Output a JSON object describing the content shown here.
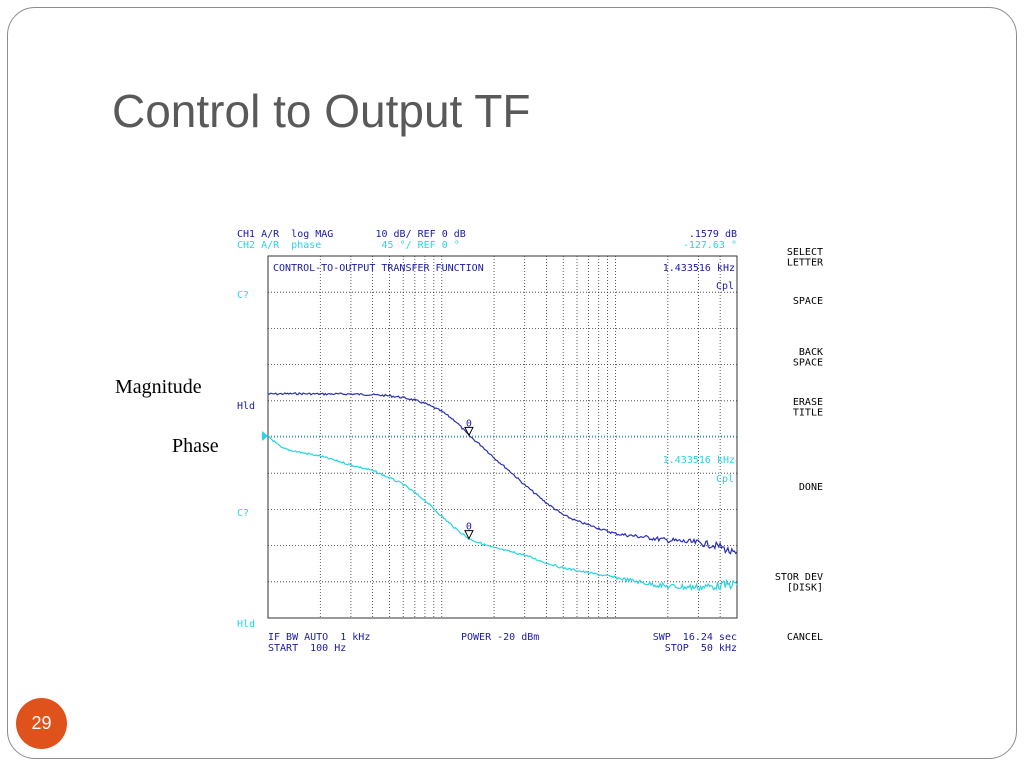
{
  "slide": {
    "title": "Control to Output TF",
    "magnitude_label": "Magnitude",
    "phase_label": "Phase",
    "page_number": "29"
  },
  "colors": {
    "ch1": "#2a2fb4",
    "ch2": "#29d4e0",
    "header_text": "#1a1aa8",
    "grid": "#333333",
    "badge": "#e0521c",
    "title": "#595959"
  },
  "analyzer": {
    "header": {
      "ch1_line": "CH1 A/R  log MAG       10 dB/ REF 0 dB",
      "ch2_line": "CH2 A/R  phase          45 °/ REF 0 °",
      "ch1_value": ".1579 dB",
      "ch2_value": "-127.63 °"
    },
    "plot_title": "CONTROL-TO-OUTPUT TRANSFER FUNCTION",
    "marker_freq_top": "1.433516 kHz",
    "marker_freq_bottom": "1.433516 kHz",
    "cpl_top": "Cpl",
    "cpl_bottom": "Cpl",
    "left_labels": [
      "C?",
      "Hld",
      "C?",
      "Hld"
    ],
    "marker_id": "0",
    "footer": {
      "left_line1": "IF BW AUTO  1 kHz",
      "left_line2": "START  100 Hz",
      "center": "POWER -20 dBm",
      "right_line1": "SWP  16.24 sec",
      "right_line2": "STOP  50 kHz"
    },
    "softkeys": [
      [
        "SELECT",
        "LETTER"
      ],
      [
        "SPACE"
      ],
      [
        "BACK",
        "SPACE"
      ],
      [
        "ERASE",
        "TITLE"
      ],
      [
        "DONE"
      ],
      [
        "STOR DEV",
        "[DISK]"
      ],
      [
        "CANCEL"
      ]
    ]
  },
  "chart_data": {
    "type": "line",
    "title": "CONTROL-TO-OUTPUT TRANSFER FUNCTION",
    "x_scale": "log",
    "xlim": [
      100,
      50000
    ],
    "grid": true,
    "marker_x": 1433.516,
    "series": [
      {
        "name": "CH1 A/R log MAG",
        "units": "dB",
        "scale_per_div": 10,
        "reference": 0,
        "x": [
          100,
          150,
          200,
          300,
          400,
          500,
          600,
          700,
          800,
          1000,
          1200,
          1433.516,
          1700,
          2000,
          2500,
          3000,
          4000,
          5000,
          6000,
          8000,
          10000,
          15000,
          20000,
          30000,
          40000,
          50000
        ],
        "y": [
          11.6,
          11.7,
          11.6,
          11.6,
          11.4,
          11.1,
          10.6,
          9.9,
          9.0,
          6.8,
          4.1,
          0.16,
          -2.8,
          -6.0,
          -10.0,
          -13.5,
          -18.5,
          -21.8,
          -23.5,
          -25.5,
          -27.0,
          -28.0,
          -28.8,
          -29.5,
          -30.5,
          -33.0
        ]
      },
      {
        "name": "CH2 A/R phase",
        "units": "deg",
        "scale_per_div": 45,
        "reference": 0,
        "x": [
          100,
          120,
          150,
          200,
          300,
          400,
          500,
          600,
          800,
          1000,
          1200,
          1433.516,
          1700,
          2000,
          3000,
          4000,
          5000,
          7000,
          10000,
          15000,
          20000,
          30000,
          40000,
          50000
        ],
        "y": [
          0,
          -15,
          -20,
          -25,
          -36,
          -43,
          -52,
          -60,
          -80,
          -100,
          -115,
          -127.63,
          -134,
          -139,
          -148,
          -158,
          -164,
          -170,
          -176,
          -183,
          -187,
          -188,
          -186,
          -184
        ]
      }
    ]
  }
}
